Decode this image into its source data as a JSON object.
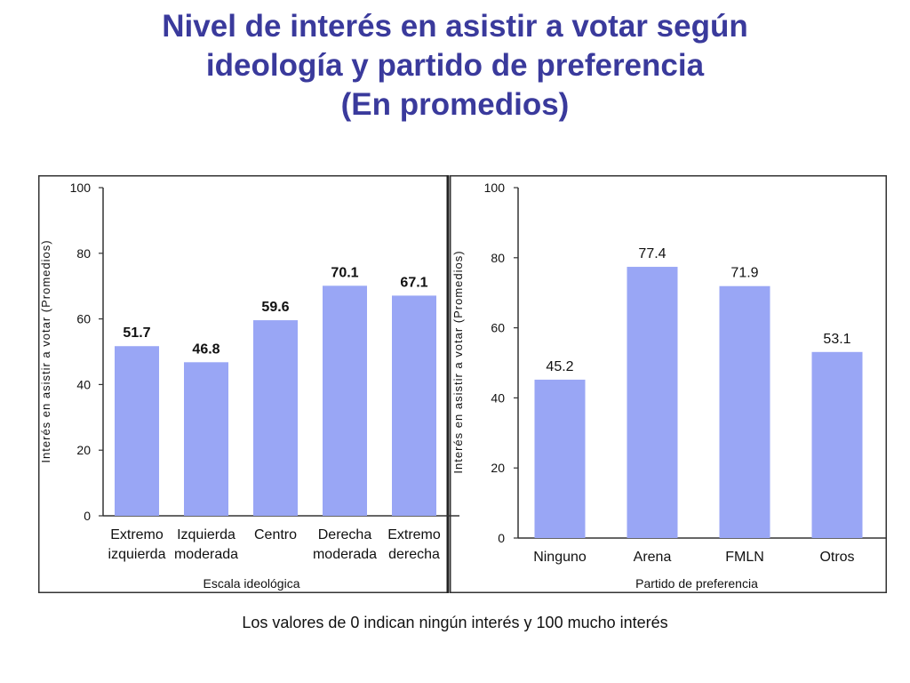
{
  "title": {
    "line1": "Nivel de interés en asistir a votar según",
    "line2": "ideología y partido de preferencia",
    "line3": "(En promedios)"
  },
  "footnote": "Los valores de 0 indican ningún interés y 100 mucho interés",
  "colors": {
    "bar": "#99a6f5",
    "title": "#3a3a9c"
  },
  "chart_data": [
    {
      "type": "bar",
      "title": "",
      "xlabel": "Escala ideológica",
      "ylabel": "Interés en asistir a votar (Promedios)",
      "ylim": [
        0,
        100
      ],
      "yticks": [
        0,
        20,
        40,
        60,
        80,
        100
      ],
      "categories": [
        [
          "Extremo",
          "izquierda"
        ],
        [
          "Izquierda",
          "moderada"
        ],
        [
          "Centro"
        ],
        [
          "Derecha",
          "moderada"
        ],
        [
          "Extremo",
          "derecha"
        ]
      ],
      "values": [
        51.7,
        46.8,
        59.6,
        70.1,
        67.1
      ],
      "value_labels": [
        "51.7",
        "46.8",
        "59.6",
        "70.1",
        "67.1"
      ],
      "grid": false
    },
    {
      "type": "bar",
      "title": "",
      "xlabel": "Partido de preferencia",
      "ylabel": "Interés en asistir a votar (Promedios)",
      "ylim": [
        0,
        100
      ],
      "yticks": [
        0,
        20,
        40,
        60,
        80,
        100
      ],
      "categories": [
        [
          "Ninguno"
        ],
        [
          "Arena"
        ],
        [
          "FMLN"
        ],
        [
          "Otros"
        ]
      ],
      "values": [
        45.2,
        77.4,
        71.9,
        53.1
      ],
      "value_labels": [
        "45.2",
        "77.4",
        "71.9",
        "53.1"
      ],
      "grid": false
    }
  ]
}
